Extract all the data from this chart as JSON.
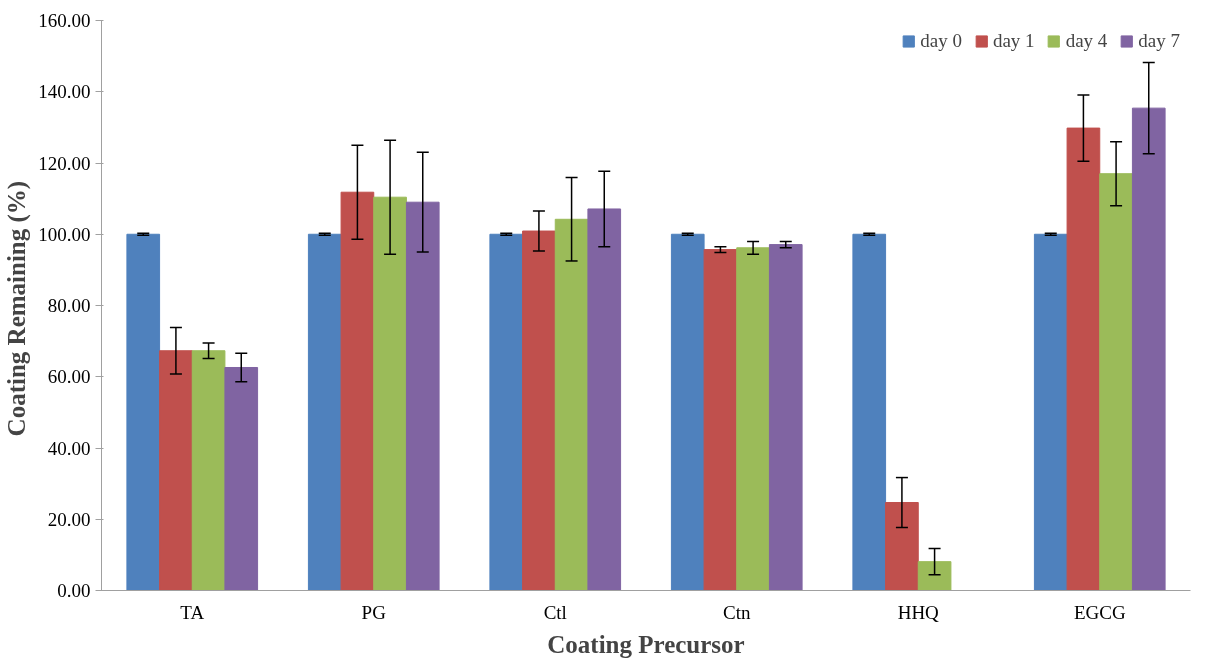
{
  "chart_data": {
    "type": "bar",
    "xlabel": "Coating Precursor",
    "ylabel": "Coating Remaining  (%)",
    "categories": [
      "TA",
      "PG",
      "Ctl",
      "Ctn",
      "HHQ",
      "EGCG"
    ],
    "series": [
      {
        "name": "day 0",
        "color": "#4f81bd",
        "values": [
          100,
          100,
          100,
          100,
          100,
          100
        ],
        "errors": [
          0.3,
          0.3,
          0.3,
          0.3,
          0.3,
          0.3
        ]
      },
      {
        "name": "day 1",
        "color": "#c0504d",
        "values": [
          67.3,
          111.8,
          100.9,
          95.7,
          24.7,
          129.8
        ],
        "errors": [
          6.5,
          13.2,
          5.6,
          0.8,
          7.0,
          9.3
        ]
      },
      {
        "name": "day 4",
        "color": "#9bbb59",
        "values": [
          67.3,
          110.4,
          104.2,
          96.2,
          8.1,
          117.0
        ],
        "errors": [
          2.2,
          16.0,
          11.7,
          1.8,
          3.7,
          9.0
        ]
      },
      {
        "name": "day 7",
        "color": "#8064a2",
        "values": [
          62.6,
          109.0,
          107.1,
          97.1,
          null,
          135.4
        ],
        "errors": [
          4.0,
          14.0,
          10.6,
          0.9,
          null,
          12.8
        ]
      }
    ],
    "ylim": [
      0,
      160
    ],
    "yticks": [
      {
        "value": 0,
        "label": "0.00"
      },
      {
        "value": 20,
        "label": "20.00"
      },
      {
        "value": 40,
        "label": "40.00"
      },
      {
        "value": 60,
        "label": "60.00"
      },
      {
        "value": 80,
        "label": "80.00"
      },
      {
        "value": 100,
        "label": "100.00"
      },
      {
        "value": 120,
        "label": "120.00"
      },
      {
        "value": 140,
        "label": "140.00"
      },
      {
        "value": 160,
        "label": "160.00"
      }
    ],
    "grid": false,
    "legend": "top right"
  }
}
